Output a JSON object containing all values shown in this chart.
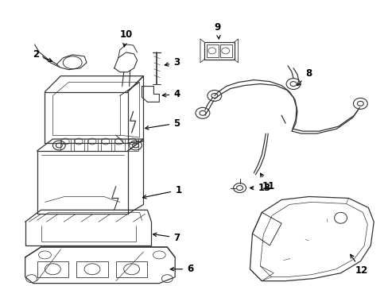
{
  "bg_color": "#ffffff",
  "line_color": "#333333",
  "text_color": "#000000",
  "label_fontsize": 8.5,
  "fig_width": 4.89,
  "fig_height": 3.6
}
